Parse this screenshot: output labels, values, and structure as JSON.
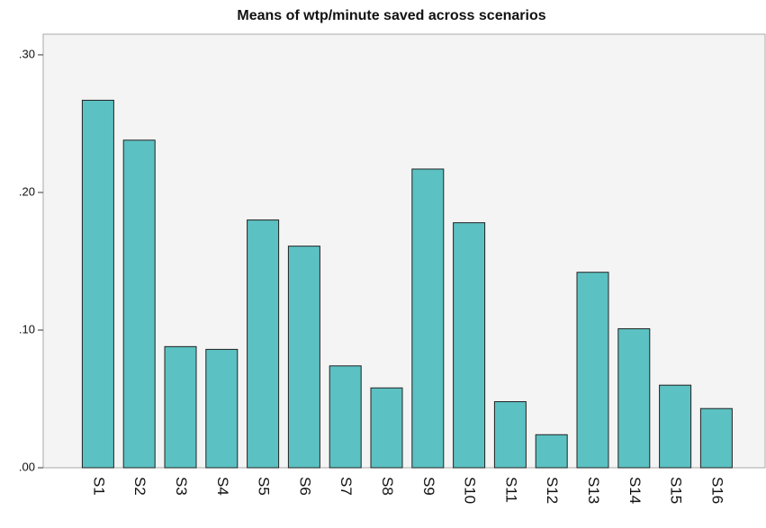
{
  "chart_data": {
    "type": "bar",
    "title": "Means of wtp/minute saved across scenarios",
    "categories": [
      "S1",
      "S2",
      "S3",
      "S4",
      "S5",
      "S6",
      "S7",
      "S8",
      "S9",
      "S10",
      "S11",
      "S12",
      "S13",
      "S14",
      "S15",
      "S16"
    ],
    "values": [
      0.267,
      0.238,
      0.088,
      0.086,
      0.18,
      0.161,
      0.074,
      0.058,
      0.217,
      0.178,
      0.048,
      0.024,
      0.142,
      0.101,
      0.06,
      0.043
    ],
    "color": "#5cc1c2",
    "ylim": [
      0,
      0.315
    ],
    "yticks": [
      {
        "value": 0,
        "label": ".00"
      },
      {
        "value": 0.1,
        "label": ".10"
      },
      {
        "value": 0.2,
        "label": ".20"
      },
      {
        "value": 0.3,
        "label": ".30"
      }
    ],
    "grid": false
  }
}
